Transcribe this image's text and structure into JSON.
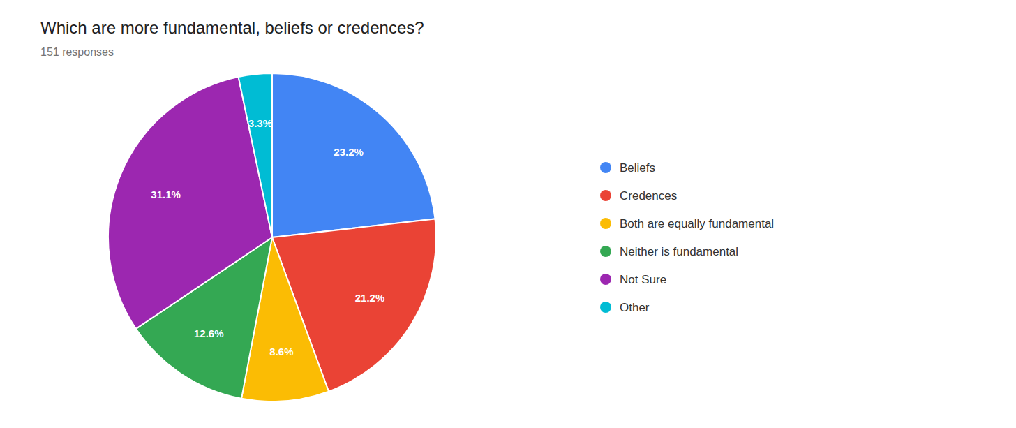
{
  "chart_data": {
    "type": "pie",
    "title": "Which are more fundamental, beliefs or credences?",
    "subtitle": "151 responses",
    "categories": [
      "Beliefs",
      "Credences",
      "Both are equally fundamental",
      "Neither is fundamental",
      "Not Sure",
      "Other"
    ],
    "values": [
      23.2,
      21.2,
      8.6,
      12.6,
      31.1,
      3.3
    ],
    "value_labels": [
      "23.2%",
      "21.2%",
      "8.6%",
      "12.6%",
      "31.1%",
      "3.3%"
    ],
    "colors": [
      "#4285F4",
      "#EA4335",
      "#FBBC04",
      "#34A853",
      "#9C27B0",
      "#00BCD4"
    ],
    "data_labels": true,
    "legend": "right"
  }
}
